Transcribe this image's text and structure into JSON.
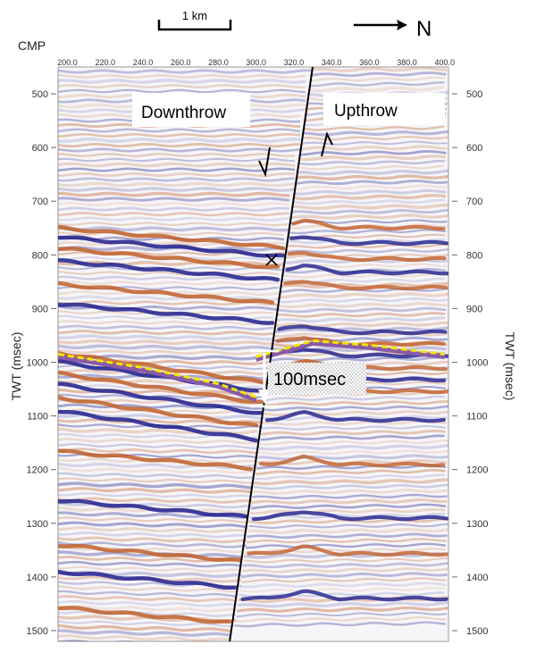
{
  "scale_bar": {
    "label": "1 km"
  },
  "north_arrow": {
    "label": "N"
  },
  "axes": {
    "x_title": "CMP",
    "y_title_left": "TWT (msec)",
    "y_title_right": "TWT (msec)",
    "x_ticks": [
      "200.0",
      "220.0",
      "240.0",
      "260.0",
      "280.0",
      "300.0",
      "320.0",
      "340.0",
      "360.0",
      "380.0",
      "400.0"
    ],
    "y_ticks": [
      "500",
      "600",
      "700",
      "800",
      "900",
      "1000",
      "1100",
      "1200",
      "1300",
      "1400",
      "1500"
    ]
  },
  "annotations": {
    "downthrow": "Downthrow",
    "upthrow": "Upthrow",
    "throw_label": "100msec"
  },
  "colors": {
    "positive_amplitude": "#c0602a",
    "negative_amplitude": "#1e1e8c",
    "horizon_pick": "#f2e600",
    "horizon_pick_underline": "#8a5aa8",
    "fault_line": "#000000"
  },
  "section": {
    "cmp_range": [
      195,
      402
    ],
    "twt_range_msec": [
      450,
      1520
    ],
    "fault": {
      "top": {
        "cmp": 330,
        "twt": 450
      },
      "bottom": {
        "cmp": 286,
        "twt": 1520
      }
    },
    "horizon_hanging_wall": [
      [
        195,
        985
      ],
      [
        240,
        1010
      ],
      [
        280,
        1040
      ],
      [
        300,
        1065
      ]
    ],
    "horizon_footwall": [
      [
        300,
        990
      ],
      [
        330,
        960
      ],
      [
        360,
        968
      ],
      [
        400,
        985
      ]
    ],
    "throw_msec": 100
  }
}
